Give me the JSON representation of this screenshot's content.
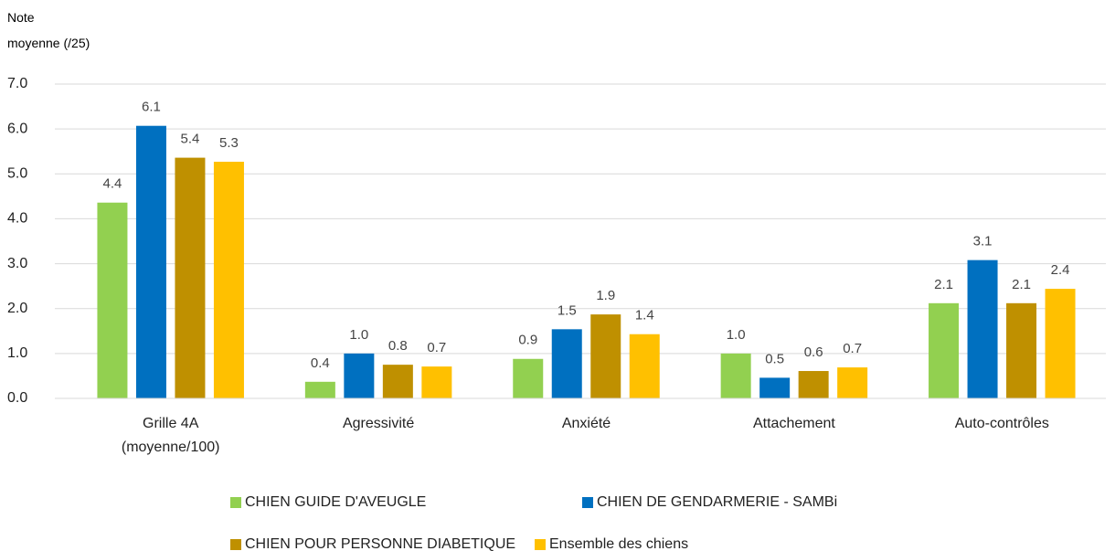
{
  "chart_data": {
    "type": "bar",
    "y_label": [
      "Note",
      "moyenne (/25)"
    ],
    "categories": [
      "Grille 4A (moyenne/100)",
      "Agressivité",
      "Anxiété",
      "Attachement",
      "Auto-contrôles"
    ],
    "series": [
      {
        "name": "CHIEN GUIDE D'AVEUGLE",
        "color": "#92d050",
        "values": [
          4.36,
          0.37,
          0.88,
          1.0,
          2.12
        ],
        "value_labels": [
          "4.4",
          "0.4",
          "0.9",
          "1.0",
          "2.1"
        ]
      },
      {
        "name": "CHIEN DE GENDARMERIE - SAMBi",
        "color": "#0070c0",
        "values": [
          6.07,
          1.0,
          1.54,
          0.46,
          3.08
        ],
        "value_labels": [
          "6.1",
          "1.0",
          "1.5",
          "0.5",
          "3.1"
        ]
      },
      {
        "name": "CHIEN POUR PERSONNE DIABETIQUE",
        "color": "#bf9000",
        "values": [
          5.36,
          0.75,
          1.87,
          0.61,
          2.12
        ],
        "value_labels": [
          "5.4",
          "0.8",
          "1.9",
          "0.6",
          "2.1"
        ]
      },
      {
        "name": "Ensemble des chiens",
        "color": "#ffc000",
        "values": [
          5.27,
          0.71,
          1.43,
          0.69,
          2.44
        ],
        "value_labels": [
          "5.3",
          "0.7",
          "1.4",
          "0.7",
          "2.4"
        ]
      }
    ],
    "ylim": [
      0,
      7
    ],
    "yticks": [
      {
        "value": 0,
        "label": "0.0"
      },
      {
        "value": 1,
        "label": "1.0"
      },
      {
        "value": 2,
        "label": "2.0"
      },
      {
        "value": 3,
        "label": "3.0"
      },
      {
        "value": 4,
        "label": "4.0"
      },
      {
        "value": 5,
        "label": "5.0"
      },
      {
        "value": 6,
        "label": "6.0"
      },
      {
        "value": 7,
        "label": "7.0"
      }
    ],
    "grid": true
  }
}
